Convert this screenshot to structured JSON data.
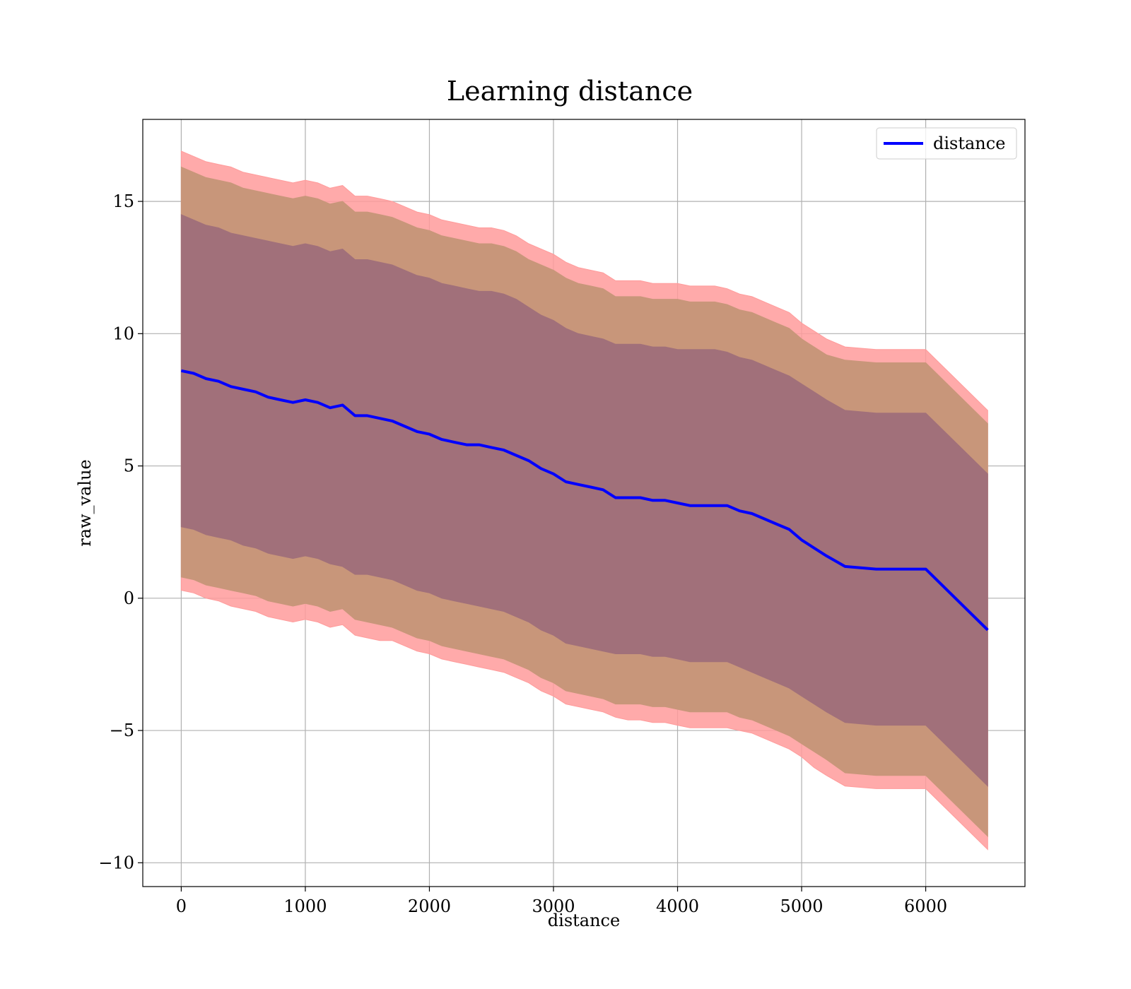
{
  "chart_data": {
    "type": "area",
    "title": "Learning distance",
    "xlabel": "distance",
    "ylabel": "raw_value",
    "xlim": [
      -310,
      6800
    ],
    "ylim": [
      -10.9,
      18.1
    ],
    "xticks": [
      0,
      1000,
      2000,
      3000,
      4000,
      5000,
      6000
    ],
    "xtick_labels": [
      "0",
      "1000",
      "2000",
      "3000",
      "4000",
      "5000",
      "6000"
    ],
    "yticks": [
      -10,
      -5,
      0,
      5,
      10,
      15
    ],
    "ytick_labels": [
      "−10",
      "−5",
      "0",
      "5",
      "10",
      "15"
    ],
    "grid": true,
    "legend": {
      "position": "top-right",
      "entries": [
        "distance"
      ]
    },
    "colors": {
      "line": "#0000ff",
      "band_outer": "#ff9b9b",
      "band_mid": "#c8967a",
      "band_inner": "#a1707a"
    },
    "x": [
      0,
      100,
      200,
      300,
      400,
      500,
      600,
      700,
      800,
      900,
      1000,
      1100,
      1200,
      1300,
      1400,
      1500,
      1600,
      1700,
      1800,
      1900,
      2000,
      2100,
      2200,
      2300,
      2400,
      2500,
      2600,
      2700,
      2800,
      2900,
      3000,
      3100,
      3200,
      3300,
      3400,
      3500,
      3600,
      3700,
      3800,
      3900,
      4000,
      4100,
      4200,
      4300,
      4400,
      4500,
      4600,
      4700,
      4800,
      4900,
      5000,
      5100,
      5200,
      5350,
      5600,
      6000,
      6500
    ],
    "series": [
      {
        "name": "distance",
        "values": [
          8.6,
          8.5,
          8.3,
          8.2,
          8.0,
          7.9,
          7.8,
          7.6,
          7.5,
          7.4,
          7.5,
          7.4,
          7.2,
          7.3,
          6.9,
          6.9,
          6.8,
          6.7,
          6.5,
          6.3,
          6.2,
          6.0,
          5.9,
          5.8,
          5.8,
          5.7,
          5.6,
          5.4,
          5.2,
          4.9,
          4.7,
          4.4,
          4.3,
          4.2,
          4.1,
          3.8,
          3.8,
          3.8,
          3.7,
          3.7,
          3.6,
          3.5,
          3.5,
          3.5,
          3.5,
          3.3,
          3.2,
          3.0,
          2.8,
          2.6,
          2.2,
          1.9,
          1.6,
          1.2,
          1.1,
          1.1,
          -1.2
        ]
      }
    ],
    "bands": [
      {
        "level": "outer",
        "upper": [
          16.9,
          16.7,
          16.5,
          16.4,
          16.3,
          16.1,
          16.0,
          15.9,
          15.8,
          15.7,
          15.8,
          15.7,
          15.5,
          15.6,
          15.2,
          15.2,
          15.1,
          15.0,
          14.8,
          14.6,
          14.5,
          14.3,
          14.2,
          14.1,
          14.0,
          14.0,
          13.9,
          13.7,
          13.4,
          13.2,
          13.0,
          12.7,
          12.5,
          12.4,
          12.3,
          12.0,
          12.0,
          12.0,
          11.9,
          11.9,
          11.9,
          11.8,
          11.8,
          11.8,
          11.7,
          11.5,
          11.4,
          11.2,
          11.0,
          10.8,
          10.4,
          10.1,
          9.8,
          9.5,
          9.4,
          9.4,
          7.1
        ],
        "lower": [
          0.3,
          0.2,
          0.0,
          -0.1,
          -0.3,
          -0.4,
          -0.5,
          -0.7,
          -0.8,
          -0.9,
          -0.8,
          -0.9,
          -1.1,
          -1.0,
          -1.4,
          -1.5,
          -1.6,
          -1.6,
          -1.8,
          -2.0,
          -2.1,
          -2.3,
          -2.4,
          -2.5,
          -2.6,
          -2.7,
          -2.8,
          -3.0,
          -3.2,
          -3.5,
          -3.7,
          -4.0,
          -4.1,
          -4.2,
          -4.3,
          -4.5,
          -4.6,
          -4.6,
          -4.7,
          -4.7,
          -4.8,
          -4.9,
          -4.9,
          -4.9,
          -4.9,
          -5.0,
          -5.1,
          -5.3,
          -5.5,
          -5.7,
          -6.0,
          -6.4,
          -6.7,
          -7.1,
          -7.2,
          -7.2,
          -9.5
        ]
      },
      {
        "level": "middle",
        "upper": [
          16.3,
          16.1,
          15.9,
          15.8,
          15.7,
          15.5,
          15.4,
          15.3,
          15.2,
          15.1,
          15.2,
          15.1,
          14.9,
          15.0,
          14.6,
          14.6,
          14.5,
          14.4,
          14.2,
          14.0,
          13.9,
          13.7,
          13.6,
          13.5,
          13.4,
          13.4,
          13.3,
          13.1,
          12.8,
          12.6,
          12.4,
          12.1,
          11.9,
          11.8,
          11.7,
          11.4,
          11.4,
          11.4,
          11.3,
          11.3,
          11.3,
          11.2,
          11.2,
          11.2,
          11.1,
          10.9,
          10.8,
          10.6,
          10.4,
          10.2,
          9.8,
          9.5,
          9.2,
          9.0,
          8.9,
          8.9,
          6.6
        ],
        "lower": [
          0.8,
          0.7,
          0.5,
          0.4,
          0.3,
          0.2,
          0.1,
          -0.1,
          -0.2,
          -0.3,
          -0.2,
          -0.3,
          -0.5,
          -0.4,
          -0.8,
          -0.9,
          -1.0,
          -1.1,
          -1.3,
          -1.5,
          -1.6,
          -1.8,
          -1.9,
          -2.0,
          -2.1,
          -2.2,
          -2.3,
          -2.5,
          -2.7,
          -3.0,
          -3.2,
          -3.5,
          -3.6,
          -3.7,
          -3.8,
          -4.0,
          -4.0,
          -4.0,
          -4.1,
          -4.1,
          -4.2,
          -4.3,
          -4.3,
          -4.3,
          -4.3,
          -4.5,
          -4.6,
          -4.8,
          -5.0,
          -5.2,
          -5.5,
          -5.8,
          -6.1,
          -6.6,
          -6.7,
          -6.7,
          -9.0
        ]
      },
      {
        "level": "inner",
        "upper": [
          14.5,
          14.3,
          14.1,
          14.0,
          13.8,
          13.7,
          13.6,
          13.5,
          13.4,
          13.3,
          13.4,
          13.3,
          13.1,
          13.2,
          12.8,
          12.8,
          12.7,
          12.6,
          12.4,
          12.2,
          12.1,
          11.9,
          11.8,
          11.7,
          11.6,
          11.6,
          11.5,
          11.3,
          11.0,
          10.7,
          10.5,
          10.2,
          10.0,
          9.9,
          9.8,
          9.6,
          9.6,
          9.6,
          9.5,
          9.5,
          9.4,
          9.4,
          9.4,
          9.4,
          9.3,
          9.1,
          9.0,
          8.8,
          8.6,
          8.4,
          8.1,
          7.8,
          7.5,
          7.1,
          7.0,
          7.0,
          4.7
        ],
        "lower": [
          2.7,
          2.6,
          2.4,
          2.3,
          2.2,
          2.0,
          1.9,
          1.7,
          1.6,
          1.5,
          1.6,
          1.5,
          1.3,
          1.2,
          0.9,
          0.9,
          0.8,
          0.7,
          0.5,
          0.3,
          0.2,
          0.0,
          -0.1,
          -0.2,
          -0.3,
          -0.4,
          -0.5,
          -0.7,
          -0.9,
          -1.2,
          -1.4,
          -1.7,
          -1.8,
          -1.9,
          -2.0,
          -2.1,
          -2.1,
          -2.1,
          -2.2,
          -2.2,
          -2.3,
          -2.4,
          -2.4,
          -2.4,
          -2.4,
          -2.6,
          -2.8,
          -3.0,
          -3.2,
          -3.4,
          -3.7,
          -4.0,
          -4.3,
          -4.7,
          -4.8,
          -4.8,
          -7.1
        ]
      }
    ]
  }
}
